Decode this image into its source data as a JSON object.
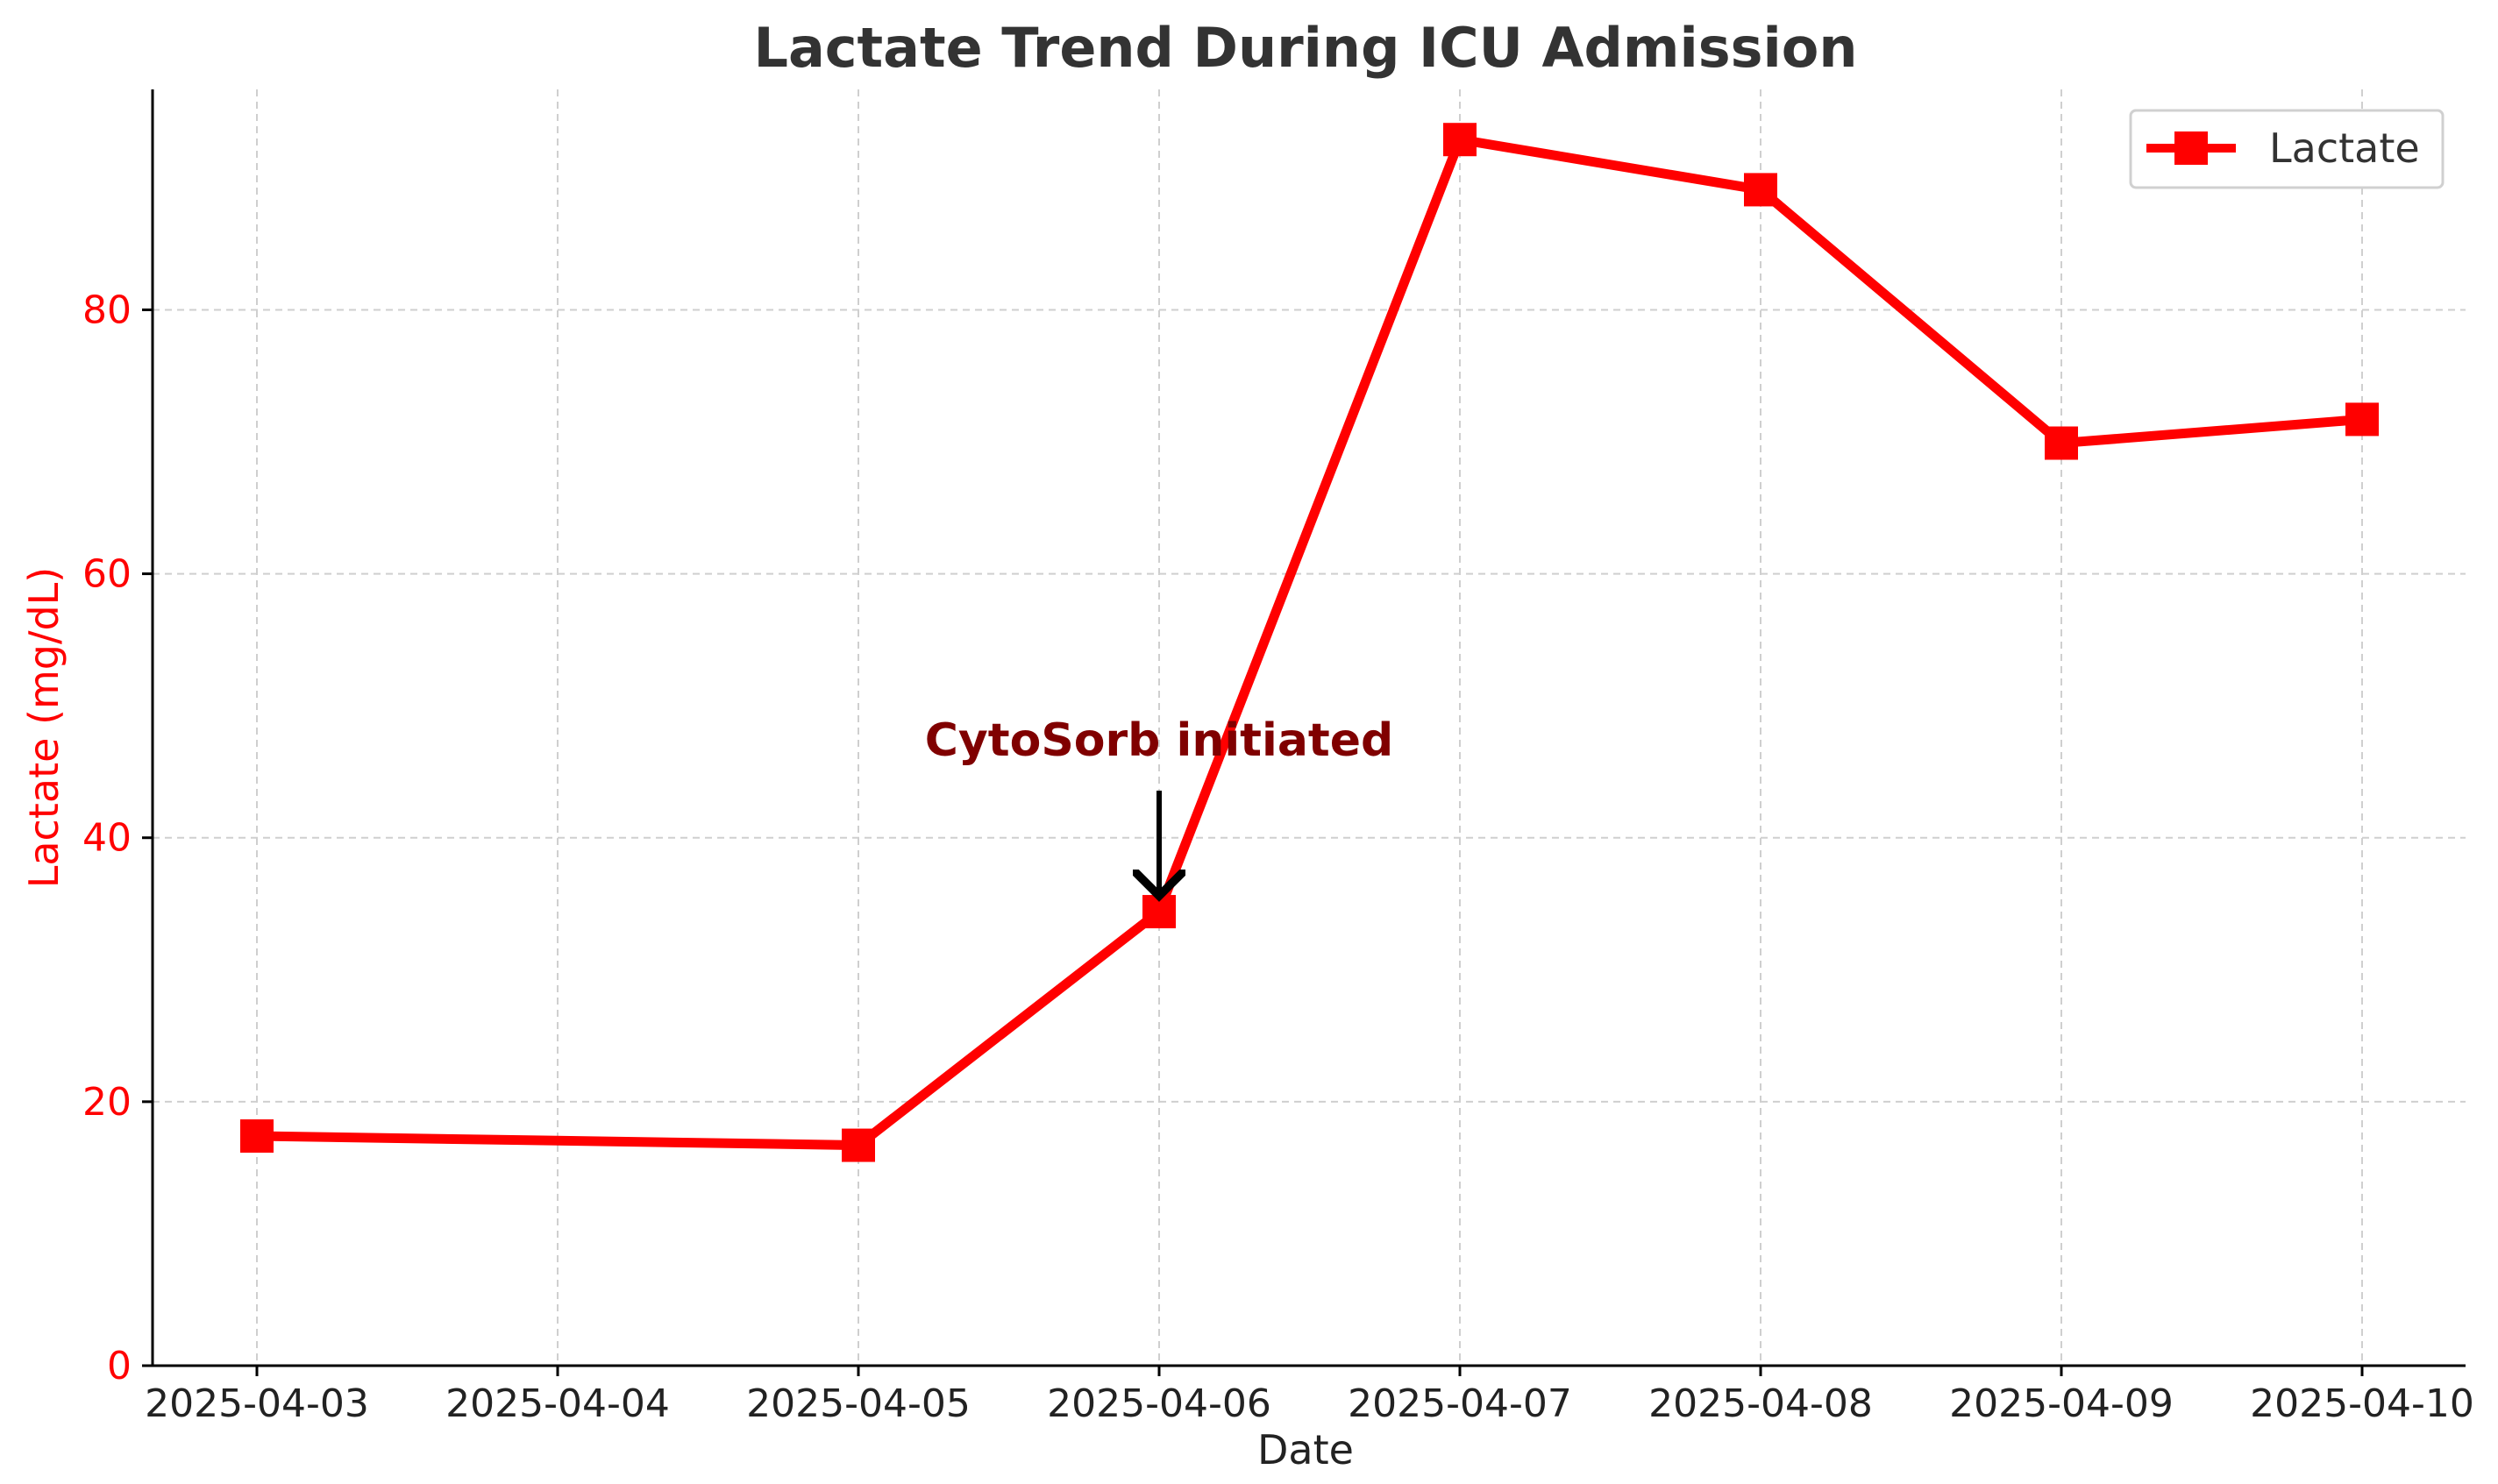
{
  "chart_data": {
    "type": "line",
    "title": "Lactate Trend During ICU Admission",
    "xlabel": "Date",
    "ylabel": "Lactate (mg/dL)",
    "categories": [
      "2025-04-03",
      "2025-04-04",
      "2025-04-05",
      "2025-04-06",
      "2025-04-07",
      "2025-04-08",
      "2025-04-09",
      "2025-04-10"
    ],
    "series": [
      {
        "name": "Lactate",
        "color": "#ff0000",
        "marker": "square",
        "points": [
          {
            "x": "2025-04-03",
            "y": 17.4
          },
          {
            "x": "2025-04-05",
            "y": 16.7
          },
          {
            "x": "2025-04-06",
            "y": 34.4
          },
          {
            "x": "2025-04-07",
            "y": 92.9
          },
          {
            "x": "2025-04-08",
            "y": 89.1
          },
          {
            "x": "2025-04-09",
            "y": 69.9
          },
          {
            "x": "2025-04-10",
            "y": 71.7
          }
        ]
      }
    ],
    "ylim": [
      0,
      96.7
    ],
    "yticks": [
      0,
      20,
      40,
      60,
      80
    ],
    "grid": true,
    "legend_position": "top-right",
    "annotation": {
      "text": "CytoSorb initiated",
      "x": "2025-04-06",
      "y": 34.4,
      "color": "#800000"
    },
    "ylabel_color": "#ff0000"
  }
}
